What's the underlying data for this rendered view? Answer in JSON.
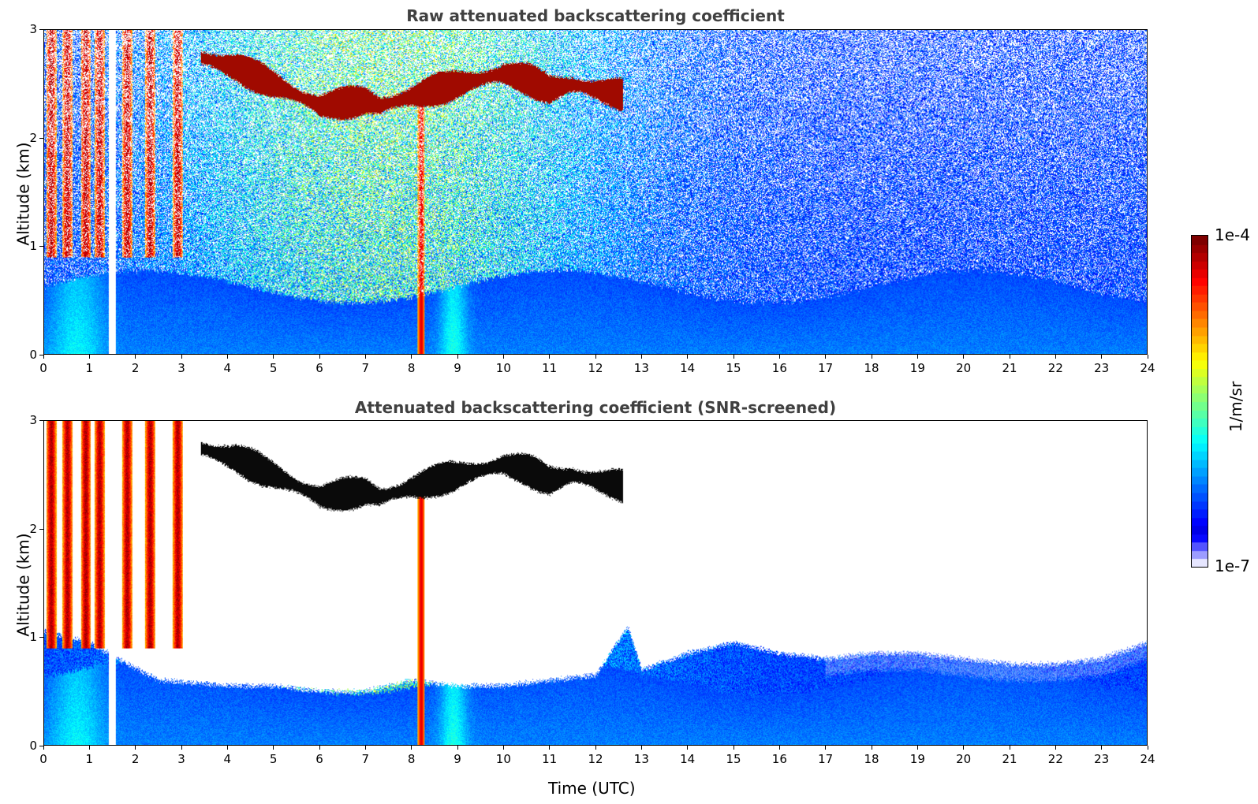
{
  "chart_data": [
    {
      "type": "heatmap",
      "title": "Raw attenuated backscattering coefficient",
      "xlabel": "",
      "ylabel": "Altitude (km)",
      "xlim": [
        0,
        24
      ],
      "ylim": [
        0,
        3
      ],
      "x_ticks": [
        "0",
        "1",
        "2",
        "3",
        "4",
        "5",
        "6",
        "7",
        "8",
        "9",
        "10",
        "11",
        "12",
        "13",
        "14",
        "15",
        "16",
        "17",
        "18",
        "19",
        "20",
        "21",
        "22",
        "23",
        "24"
      ],
      "y_ticks": [
        "0",
        "1",
        "2",
        "3"
      ],
      "features": {
        "boundary_layer_top_km": 0.6,
        "elevated_cloud_layer_km": [
          2.0,
          2.8
        ],
        "data_gap_hours": [
          1.4,
          1.55
        ],
        "strong_vertical_feature_hours": [
          8.1,
          8.3
        ]
      }
    },
    {
      "type": "heatmap",
      "title": "Attenuated backscattering coefficient (SNR-screened)",
      "xlabel": "Time (UTC)",
      "ylabel": "Altitude (km)",
      "xlim": [
        0,
        24
      ],
      "ylim": [
        0,
        3
      ],
      "x_ticks": [
        "0",
        "1",
        "2",
        "3",
        "4",
        "5",
        "6",
        "7",
        "8",
        "9",
        "10",
        "11",
        "12",
        "13",
        "14",
        "15",
        "16",
        "17",
        "18",
        "19",
        "20",
        "21",
        "22",
        "23",
        "24"
      ],
      "y_ticks": [
        "0",
        "1",
        "2",
        "3"
      ],
      "features": {
        "screened_top_km_min": 0.5,
        "screened_top_km_max": 1.05
      }
    }
  ],
  "colorbar": {
    "label": "1/m/sr",
    "max_label": "1e-4",
    "min_label": "1e-7",
    "scale": "log",
    "range": [
      1e-07,
      0.0001
    ],
    "colormap": "jet"
  }
}
